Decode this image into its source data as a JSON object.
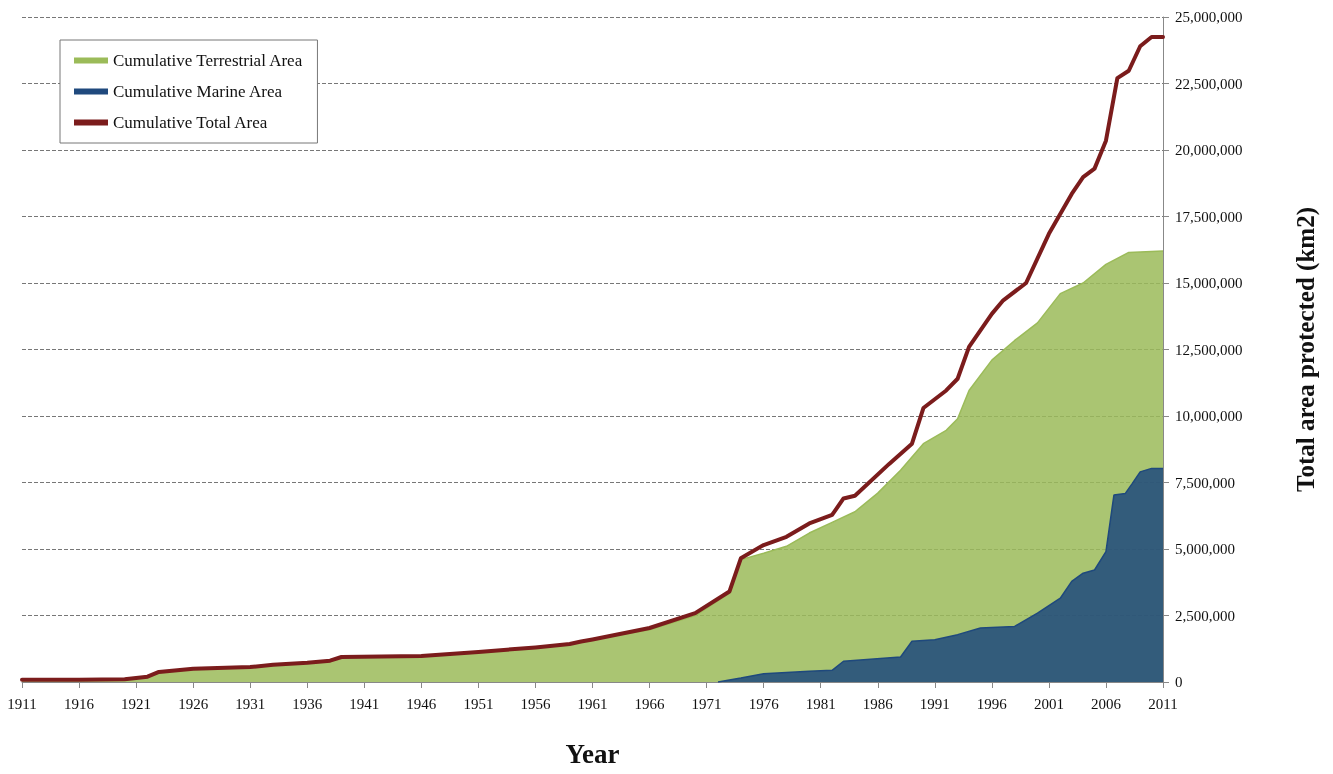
{
  "chart_data": {
    "type": "area",
    "xlabel": "Year",
    "ylabel": "Total area protected (km2)",
    "xlim": [
      1911,
      2011
    ],
    "xticks": [
      1911,
      1916,
      1921,
      1926,
      1931,
      1936,
      1941,
      1946,
      1951,
      1956,
      1961,
      1966,
      1971,
      1976,
      1981,
      1986,
      1991,
      1996,
      2001,
      2006,
      2011
    ],
    "ylim": [
      0,
      25000000
    ],
    "yticks": [
      0,
      {
        "value": 2500000,
        "label": "2,500,000"
      },
      {
        "value": 5000000,
        "label": "5,000,000"
      },
      {
        "value": 7500000,
        "label": "7,500,000"
      },
      {
        "value": 10000000,
        "label": "10,000,000"
      },
      {
        "value": 12500000,
        "label": "12,500,000"
      },
      {
        "value": 15000000,
        "label": "15,000,000"
      },
      {
        "value": 17500000,
        "label": "17,500,000"
      },
      {
        "value": 20000000,
        "label": "20,000,000"
      },
      {
        "value": 22500000,
        "label": "22,500,000"
      },
      {
        "value": 25000000,
        "label": "25,000,000"
      }
    ],
    "grid": "y",
    "legend": "top left",
    "stacked": false,
    "series": [
      {
        "name": "Cumulative Terrestrial Area",
        "color": "#9bbb59",
        "x": [
          1911,
          1916,
          1920,
          1921,
          1922,
          1923,
          1926,
          1931,
          1933,
          1936,
          1938,
          1939,
          1946,
          1951,
          1956,
          1959,
          1960,
          1961,
          1966,
          1970,
          1973,
          1974,
          1976,
          1978,
          1980,
          1982,
          1984,
          1986,
          1988,
          1990,
          1992,
          1993,
          1994,
          1996,
          1998,
          2000,
          2002,
          2004,
          2006,
          2008,
          2011
        ],
        "values": [
          80000,
          80000,
          100000,
          150000,
          200000,
          380000,
          500000,
          560000,
          650000,
          720000,
          800000,
          940000,
          980000,
          1130000,
          1300000,
          1430000,
          1520000,
          1600000,
          1960000,
          2500000,
          3340000,
          4600000,
          4840000,
          5100000,
          5600000,
          6000000,
          6400000,
          7100000,
          7960000,
          8960000,
          9460000,
          9900000,
          10960000,
          12100000,
          12840000,
          13500000,
          14600000,
          15000000,
          15700000,
          16150000,
          16200000
        ]
      },
      {
        "name": "Cumulative Marine Area",
        "color": "#1f497d",
        "x": [
          1972,
          1974,
          1976,
          1980,
          1982,
          1983,
          1988,
          1989,
          1991,
          1993,
          1995,
          1998,
          2000,
          2002,
          2003,
          2004,
          2005,
          2006,
          2006.7,
          2007.7,
          2008.3,
          2009,
          2010,
          2011
        ],
        "values": [
          0,
          150000,
          310000,
          400000,
          440000,
          780000,
          940000,
          1530000,
          1590000,
          1780000,
          2030000,
          2090000,
          2590000,
          3150000,
          3780000,
          4090000,
          4210000,
          4900000,
          7030000,
          7090000,
          7460000,
          7900000,
          8030000,
          8030000
        ]
      },
      {
        "name": "Cumulative Total Area",
        "type": "line",
        "color": "#7b1c1c",
        "x": [
          1911,
          1916,
          1920,
          1921,
          1922,
          1923,
          1926,
          1931,
          1933,
          1936,
          1938,
          1939,
          1946,
          1951,
          1956,
          1959,
          1960,
          1961,
          1966,
          1970,
          1973,
          1974,
          1976,
          1978,
          1980,
          1982,
          1983,
          1984,
          1987,
          1989,
          1990,
          1992,
          1993,
          1994,
          1996,
          1997,
          1999,
          2001,
          2003,
          2004,
          2005,
          2006,
          2007,
          2008,
          2009,
          2010,
          2011
        ],
        "values": [
          80000,
          80000,
          100000,
          150000,
          200000,
          380000,
          500000,
          560000,
          650000,
          720000,
          800000,
          940000,
          980000,
          1130000,
          1300000,
          1430000,
          1520000,
          1600000,
          2030000,
          2590000,
          3400000,
          4650000,
          5150000,
          5460000,
          5960000,
          6280000,
          6900000,
          7000000,
          8200000,
          8960000,
          10300000,
          10960000,
          11400000,
          12600000,
          13840000,
          14350000,
          15000000,
          16850000,
          18350000,
          18980000,
          19300000,
          20350000,
          22700000,
          22980000,
          23900000,
          24250000,
          24250000
        ]
      }
    ]
  }
}
